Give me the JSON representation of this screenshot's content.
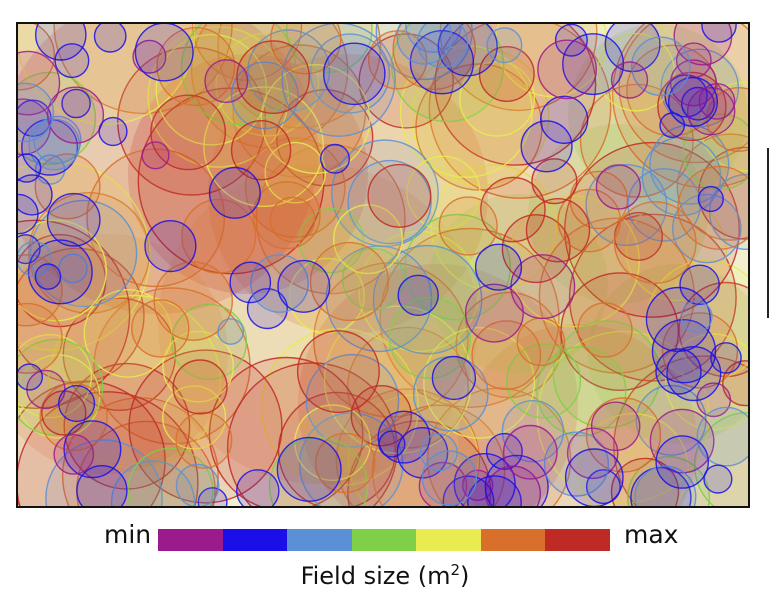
{
  "legend": {
    "min_label": "min",
    "max_label": "max",
    "title": "Field size (m",
    "title_sup": "2",
    "title_close": ")",
    "scale_colors": [
      "#9b1a8c",
      "#1a0fe8",
      "#5b8fd6",
      "#7fd048",
      "#e8ec50",
      "#d8702c",
      "#c02a24"
    ]
  },
  "map": {
    "background": "#f2efcf",
    "frame_color": "#111111"
  }
}
